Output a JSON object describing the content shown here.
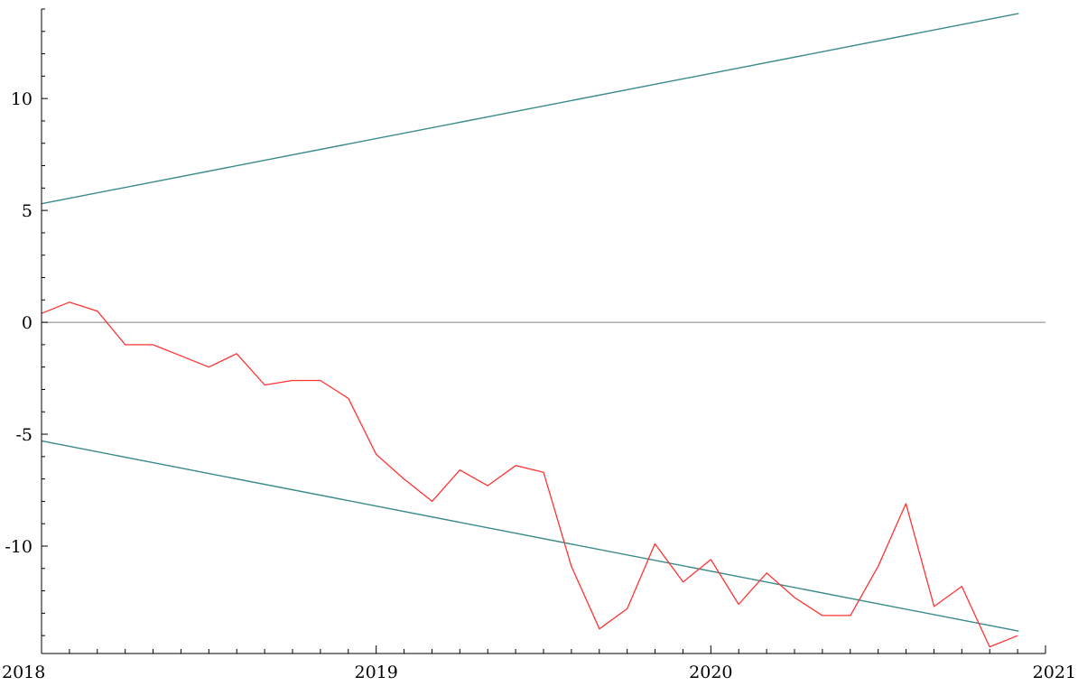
{
  "chart_data": {
    "type": "line",
    "title": "",
    "xlabel": "",
    "ylabel": "",
    "xlim": [
      2018.0,
      2021.0
    ],
    "ylim": [
      -14.8,
      14.0
    ],
    "x_ticks": [
      2018,
      2019,
      2020,
      2021
    ],
    "x_tick_labels": [
      "2018",
      "2019",
      "2020",
      "2021"
    ],
    "y_ticks": [
      -10,
      -5,
      0,
      5,
      10
    ],
    "y_tick_labels": [
      "-10",
      "-5",
      "0",
      "5",
      "10"
    ],
    "grid": false,
    "reference_line": {
      "y": 0,
      "color": "#808080"
    },
    "bounds": [
      {
        "x": [
          2018.0,
          2020.92
        ],
        "y": [
          5.3,
          13.8
        ],
        "color": "#3a8a8a"
      },
      {
        "x": [
          2018.0,
          2020.92
        ],
        "y": [
          -5.3,
          -13.8
        ],
        "color": "#3a8a8a"
      }
    ],
    "series": [
      {
        "color": "#ff3333",
        "x": [
          2018.0,
          2018.083,
          2018.167,
          2018.25,
          2018.333,
          2018.417,
          2018.5,
          2018.583,
          2018.667,
          2018.75,
          2018.833,
          2018.917,
          2019.0,
          2019.083,
          2019.167,
          2019.25,
          2019.333,
          2019.417,
          2019.5,
          2019.583,
          2019.667,
          2019.75,
          2019.833,
          2019.917,
          2020.0,
          2020.083,
          2020.167,
          2020.25,
          2020.333,
          2020.417,
          2020.5,
          2020.583,
          2020.667,
          2020.75,
          2020.833,
          2020.917
        ],
        "y": [
          0.4,
          0.9,
          0.5,
          -1.0,
          -1.0,
          -1.5,
          -2.0,
          -1.4,
          -2.8,
          -2.6,
          -2.6,
          -3.4,
          -5.9,
          -7.0,
          -8.0,
          -6.6,
          -7.3,
          -6.4,
          -6.7,
          -10.9,
          -13.7,
          -12.8,
          -9.9,
          -11.6,
          -10.6,
          -12.6,
          -11.2,
          -12.3,
          -13.1,
          -13.1,
          -10.9,
          -8.1,
          -12.7,
          -11.8,
          -14.5,
          -14.0
        ]
      }
    ]
  }
}
